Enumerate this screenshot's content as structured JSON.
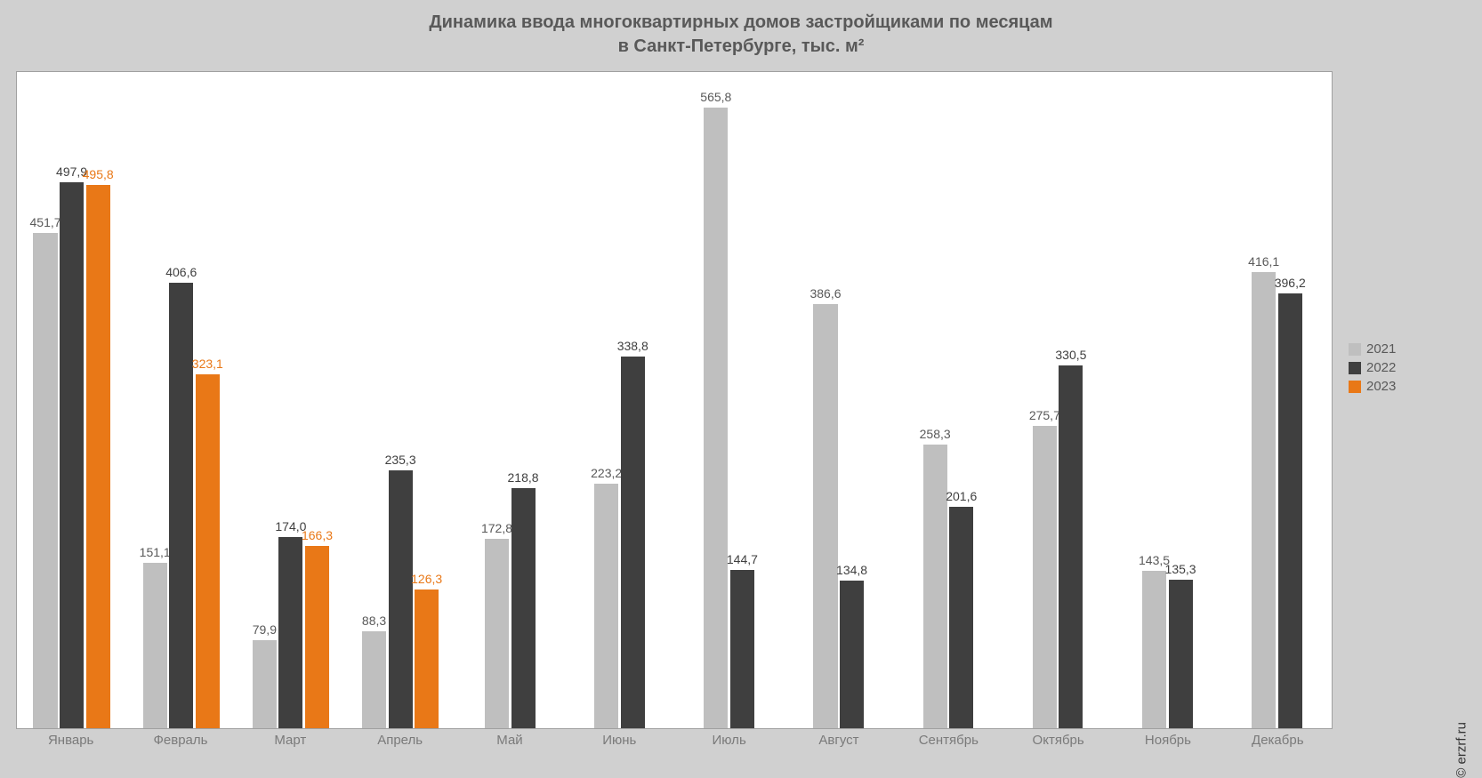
{
  "chart": {
    "type": "bar",
    "title_line1": "Динамика ввода многоквартирных домов застройщиками по месяцам",
    "title_line2": "в Санкт-Петербурге, тыс. м²",
    "title_fontsize": 20,
    "title_color": "#595959",
    "background_color": "#d0d0d0",
    "plot_background": "#ffffff",
    "plot_border_color": "#a0a0a0",
    "y_max": 600,
    "bar_width_ratio": 0.22,
    "bar_gap_ratio": 0.02,
    "group_padding_ratio": 0.14,
    "label_fontsize": 14,
    "axis_label_color": "#7a7a7a",
    "axis_label_fontsize": 15,
    "categories": [
      "Январь",
      "Февраль",
      "Март",
      "Апрель",
      "Май",
      "Июнь",
      "Июль",
      "Август",
      "Сентябрь",
      "Октябрь",
      "Ноябрь",
      "Декабрь"
    ],
    "series": [
      {
        "name": "2021",
        "color": "#bfbfbf",
        "label_color": "#595959",
        "values": [
          451.7,
          151.1,
          79.9,
          88.3,
          172.8,
          223.2,
          565.8,
          386.6,
          258.3,
          275.7,
          143.5,
          416.1
        ],
        "labels": [
          "451,7",
          "151,1",
          "79,9",
          "88,3",
          "172,8",
          "223,2",
          "565,8",
          "386,6",
          "258,3",
          "275,7",
          "143,5",
          "416,1"
        ]
      },
      {
        "name": "2022",
        "color": "#3f3f3f",
        "label_color": "#3f3f3f",
        "values": [
          497.9,
          406.6,
          174.0,
          235.3,
          218.8,
          338.8,
          144.7,
          134.8,
          201.6,
          330.5,
          135.3,
          396.2
        ],
        "labels": [
          "497,9",
          "406,6",
          "174,0",
          "235,3",
          "218,8",
          "338,8",
          "144,7",
          "134,8",
          "201,6",
          "330,5",
          "135,3",
          "396,2"
        ]
      },
      {
        "name": "2023",
        "color": "#e97817",
        "label_color": "#e97817",
        "values": [
          495.8,
          323.1,
          166.3,
          126.3,
          null,
          null,
          null,
          null,
          null,
          null,
          null,
          null
        ],
        "labels": [
          "495,8",
          "323,1",
          "166,3",
          "126,3",
          null,
          null,
          null,
          null,
          null,
          null,
          null,
          null
        ]
      }
    ],
    "legend": {
      "position": "right-middle",
      "fontsize": 15,
      "text_color": "#595959"
    },
    "copyright": "© erzrf.ru",
    "copyright_fontsize": 15
  }
}
